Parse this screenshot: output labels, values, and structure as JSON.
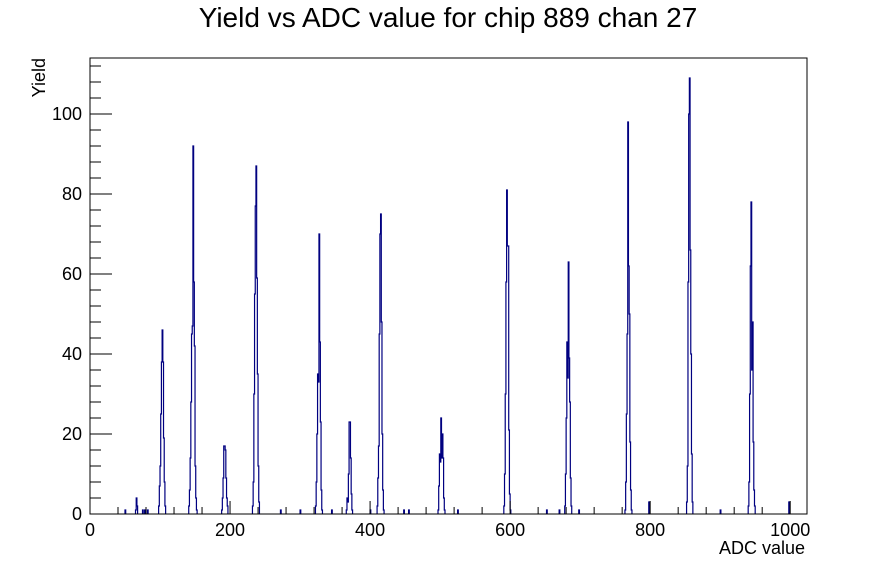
{
  "chart_data": {
    "type": "bar",
    "title": "Yield vs ADC value for chip 889 chan 27",
    "xlabel": "ADC value",
    "ylabel": "Yield",
    "xlim": [
      0,
      1024
    ],
    "ylim": [
      0,
      114
    ],
    "xticks": [
      0,
      200,
      400,
      600,
      800,
      1000
    ],
    "yticks": [
      0,
      20,
      40,
      60,
      80,
      100
    ],
    "grid": false,
    "series_color": "#000080",
    "bins": [
      {
        "x": 50,
        "y": 1
      },
      {
        "x": 65,
        "y": 1
      },
      {
        "x": 66,
        "y": 4
      },
      {
        "x": 67,
        "y": 2
      },
      {
        "x": 75,
        "y": 1
      },
      {
        "x": 78,
        "y": 1
      },
      {
        "x": 82,
        "y": 1
      },
      {
        "x": 98,
        "y": 2
      },
      {
        "x": 99,
        "y": 7
      },
      {
        "x": 100,
        "y": 12
      },
      {
        "x": 101,
        "y": 25
      },
      {
        "x": 102,
        "y": 38
      },
      {
        "x": 103,
        "y": 46
      },
      {
        "x": 104,
        "y": 38
      },
      {
        "x": 105,
        "y": 19
      },
      {
        "x": 106,
        "y": 8
      },
      {
        "x": 107,
        "y": 2
      },
      {
        "x": 141,
        "y": 2
      },
      {
        "x": 142,
        "y": 6
      },
      {
        "x": 143,
        "y": 14
      },
      {
        "x": 144,
        "y": 28
      },
      {
        "x": 145,
        "y": 45
      },
      {
        "x": 146,
        "y": 47
      },
      {
        "x": 147,
        "y": 92
      },
      {
        "x": 148,
        "y": 58
      },
      {
        "x": 149,
        "y": 42
      },
      {
        "x": 150,
        "y": 12
      },
      {
        "x": 151,
        "y": 4
      },
      {
        "x": 152,
        "y": 1
      },
      {
        "x": 188,
        "y": 1
      },
      {
        "x": 189,
        "y": 4
      },
      {
        "x": 190,
        "y": 9
      },
      {
        "x": 191,
        "y": 17
      },
      {
        "x": 192,
        "y": 17
      },
      {
        "x": 193,
        "y": 16
      },
      {
        "x": 194,
        "y": 9
      },
      {
        "x": 195,
        "y": 4
      },
      {
        "x": 196,
        "y": 2
      },
      {
        "x": 232,
        "y": 2
      },
      {
        "x": 233,
        "y": 8
      },
      {
        "x": 234,
        "y": 30
      },
      {
        "x": 235,
        "y": 55
      },
      {
        "x": 236,
        "y": 77
      },
      {
        "x": 237,
        "y": 87
      },
      {
        "x": 238,
        "y": 59
      },
      {
        "x": 239,
        "y": 35
      },
      {
        "x": 240,
        "y": 12
      },
      {
        "x": 241,
        "y": 3
      },
      {
        "x": 272,
        "y": 1
      },
      {
        "x": 300,
        "y": 1
      },
      {
        "x": 322,
        "y": 2
      },
      {
        "x": 323,
        "y": 8
      },
      {
        "x": 324,
        "y": 20
      },
      {
        "x": 325,
        "y": 35
      },
      {
        "x": 326,
        "y": 33
      },
      {
        "x": 327,
        "y": 70
      },
      {
        "x": 328,
        "y": 43
      },
      {
        "x": 329,
        "y": 23
      },
      {
        "x": 330,
        "y": 6
      },
      {
        "x": 331,
        "y": 1
      },
      {
        "x": 345,
        "y": 1
      },
      {
        "x": 366,
        "y": 1
      },
      {
        "x": 367,
        "y": 4
      },
      {
        "x": 368,
        "y": 3
      },
      {
        "x": 369,
        "y": 10
      },
      {
        "x": 370,
        "y": 23
      },
      {
        "x": 371,
        "y": 23
      },
      {
        "x": 372,
        "y": 14
      },
      {
        "x": 373,
        "y": 5
      },
      {
        "x": 374,
        "y": 1
      },
      {
        "x": 400,
        "y": 1
      },
      {
        "x": 410,
        "y": 2
      },
      {
        "x": 411,
        "y": 9
      },
      {
        "x": 412,
        "y": 17
      },
      {
        "x": 413,
        "y": 45
      },
      {
        "x": 414,
        "y": 70
      },
      {
        "x": 415,
        "y": 75
      },
      {
        "x": 416,
        "y": 48
      },
      {
        "x": 417,
        "y": 20
      },
      {
        "x": 418,
        "y": 6
      },
      {
        "x": 419,
        "y": 1
      },
      {
        "x": 448,
        "y": 1
      },
      {
        "x": 455,
        "y": 1
      },
      {
        "x": 497,
        "y": 1
      },
      {
        "x": 498,
        "y": 7
      },
      {
        "x": 499,
        "y": 15
      },
      {
        "x": 500,
        "y": 13
      },
      {
        "x": 501,
        "y": 24
      },
      {
        "x": 502,
        "y": 14
      },
      {
        "x": 503,
        "y": 20
      },
      {
        "x": 504,
        "y": 14
      },
      {
        "x": 505,
        "y": 4
      },
      {
        "x": 506,
        "y": 1
      },
      {
        "x": 525,
        "y": 1
      },
      {
        "x": 591,
        "y": 2
      },
      {
        "x": 592,
        "y": 10
      },
      {
        "x": 593,
        "y": 30
      },
      {
        "x": 594,
        "y": 58
      },
      {
        "x": 595,
        "y": 81
      },
      {
        "x": 596,
        "y": 67
      },
      {
        "x": 597,
        "y": 67
      },
      {
        "x": 598,
        "y": 21
      },
      {
        "x": 599,
        "y": 5
      },
      {
        "x": 600,
        "y": 1
      },
      {
        "x": 652,
        "y": 1
      },
      {
        "x": 670,
        "y": 1
      },
      {
        "x": 678,
        "y": 2
      },
      {
        "x": 679,
        "y": 10
      },
      {
        "x": 680,
        "y": 24
      },
      {
        "x": 681,
        "y": 43
      },
      {
        "x": 682,
        "y": 34
      },
      {
        "x": 683,
        "y": 63
      },
      {
        "x": 684,
        "y": 39
      },
      {
        "x": 685,
        "y": 28
      },
      {
        "x": 686,
        "y": 9
      },
      {
        "x": 687,
        "y": 2
      },
      {
        "x": 698,
        "y": 1
      },
      {
        "x": 764,
        "y": 1
      },
      {
        "x": 765,
        "y": 8
      },
      {
        "x": 766,
        "y": 25
      },
      {
        "x": 767,
        "y": 45
      },
      {
        "x": 768,
        "y": 98
      },
      {
        "x": 769,
        "y": 62
      },
      {
        "x": 770,
        "y": 50
      },
      {
        "x": 771,
        "y": 18
      },
      {
        "x": 772,
        "y": 6
      },
      {
        "x": 773,
        "y": 1
      },
      {
        "x": 798,
        "y": 3
      },
      {
        "x": 852,
        "y": 3
      },
      {
        "x": 853,
        "y": 12
      },
      {
        "x": 854,
        "y": 58
      },
      {
        "x": 855,
        "y": 100
      },
      {
        "x": 856,
        "y": 109
      },
      {
        "x": 857,
        "y": 66
      },
      {
        "x": 858,
        "y": 40
      },
      {
        "x": 859,
        "y": 15
      },
      {
        "x": 860,
        "y": 3
      },
      {
        "x": 900,
        "y": 1
      },
      {
        "x": 940,
        "y": 2
      },
      {
        "x": 941,
        "y": 8
      },
      {
        "x": 942,
        "y": 30
      },
      {
        "x": 943,
        "y": 62
      },
      {
        "x": 944,
        "y": 78
      },
      {
        "x": 945,
        "y": 36
      },
      {
        "x": 946,
        "y": 48
      },
      {
        "x": 947,
        "y": 18
      },
      {
        "x": 948,
        "y": 6
      },
      {
        "x": 949,
        "y": 2
      },
      {
        "x": 998,
        "y": 3
      }
    ]
  }
}
